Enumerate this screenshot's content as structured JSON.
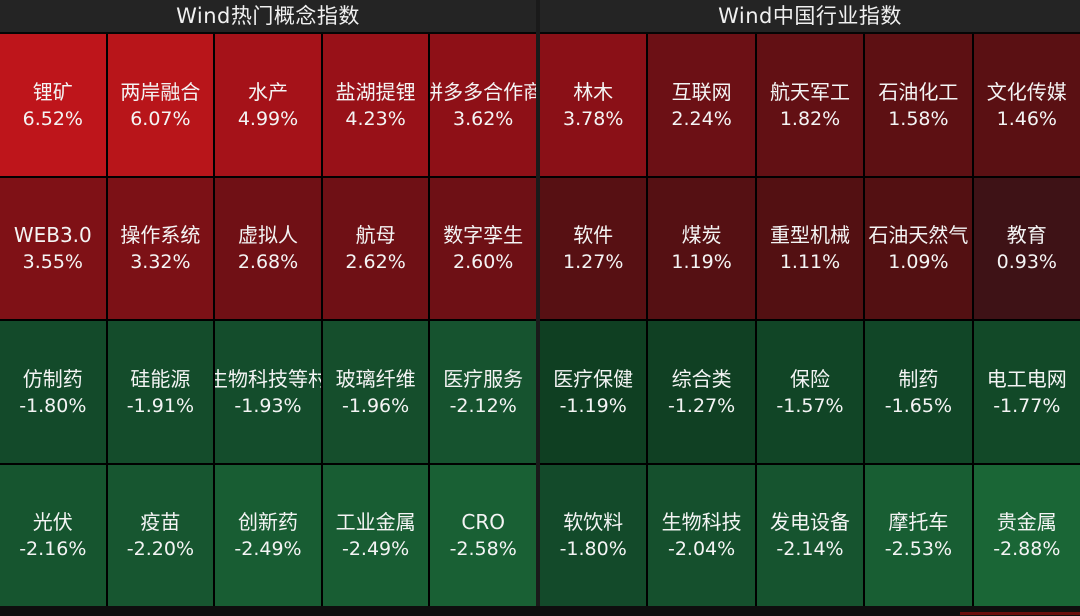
{
  "panels": [
    {
      "title": "Wind热门概念指数",
      "tiles": [
        {
          "name": "锂矿",
          "pct": "6.52%",
          "color": "#be151b"
        },
        {
          "name": "两岸融合",
          "pct": "6.07%",
          "color": "#b8151a"
        },
        {
          "name": "水产",
          "pct": "4.99%",
          "color": "#a51219"
        },
        {
          "name": "盐湖提锂",
          "pct": "4.23%",
          "color": "#981118"
        },
        {
          "name": "拼多多合作商",
          "pct": "3.62%",
          "color": "#8e1017"
        },
        {
          "name": "WEB3.0",
          "pct": "3.55%",
          "color": "#7f1116"
        },
        {
          "name": "操作系统",
          "pct": "3.32%",
          "color": "#7c1116"
        },
        {
          "name": "虚拟人",
          "pct": "2.68%",
          "color": "#701015"
        },
        {
          "name": "航母",
          "pct": "2.62%",
          "color": "#6f1015"
        },
        {
          "name": "数字孪生",
          "pct": "2.60%",
          "color": "#6e1015"
        },
        {
          "name": "仿制药",
          "pct": "-1.80%",
          "color": "#134a2a"
        },
        {
          "name": "硅能源",
          "pct": "-1.91%",
          "color": "#144c2b"
        },
        {
          "name": "生物科技等村",
          "pct": "-1.93%",
          "color": "#144d2c"
        },
        {
          "name": "玻璃纤维",
          "pct": "-1.96%",
          "color": "#154e2c"
        },
        {
          "name": "医疗服务",
          "pct": "-2.12%",
          "color": "#16532f"
        },
        {
          "name": "光伏",
          "pct": "-2.16%",
          "color": "#16552f"
        },
        {
          "name": "疫苗",
          "pct": "-2.20%",
          "color": "#175630"
        },
        {
          "name": "创新药",
          "pct": "-2.49%",
          "color": "#185d33"
        },
        {
          "name": "工业金属",
          "pct": "-2.49%",
          "color": "#185d33"
        },
        {
          "name": "CRO",
          "pct": "-2.58%",
          "color": "#196034"
        }
      ]
    },
    {
      "title": "Wind中国行业指数",
      "tiles": [
        {
          "name": "林木",
          "pct": "3.78%",
          "color": "#8a1017"
        },
        {
          "name": "互联网",
          "pct": "2.24%",
          "color": "#6c1015"
        },
        {
          "name": "航天军工",
          "pct": "1.82%",
          "color": "#621014"
        },
        {
          "name": "石油化工",
          "pct": "1.58%",
          "color": "#5d1013"
        },
        {
          "name": "文化传媒",
          "pct": "1.46%",
          "color": "#5a1013"
        },
        {
          "name": "软件",
          "pct": "1.27%",
          "color": "#571013"
        },
        {
          "name": "煤炭",
          "pct": "1.19%",
          "color": "#551013"
        },
        {
          "name": "重型机械",
          "pct": "1.11%",
          "color": "#531012"
        },
        {
          "name": "石油天然气",
          "pct": "1.09%",
          "color": "#531012"
        },
        {
          "name": "教育",
          "pct": "0.93%",
          "color": "#3e1216"
        },
        {
          "name": "医疗保健",
          "pct": "-1.19%",
          "color": "#0f3f22"
        },
        {
          "name": "综合类",
          "pct": "-1.27%",
          "color": "#104023"
        },
        {
          "name": "保险",
          "pct": "-1.57%",
          "color": "#114526"
        },
        {
          "name": "制药",
          "pct": "-1.65%",
          "color": "#114627"
        },
        {
          "name": "电工电网",
          "pct": "-1.77%",
          "color": "#124928"
        },
        {
          "name": "软饮料",
          "pct": "-1.80%",
          "color": "#134a2a"
        },
        {
          "name": "生物科技",
          "pct": "-2.04%",
          "color": "#15502d"
        },
        {
          "name": "发电设备",
          "pct": "-2.14%",
          "color": "#16542f"
        },
        {
          "name": "摩托车",
          "pct": "-2.53%",
          "color": "#185e33"
        },
        {
          "name": "贵金属",
          "pct": "-2.88%",
          "color": "#1a6636"
        }
      ]
    }
  ]
}
